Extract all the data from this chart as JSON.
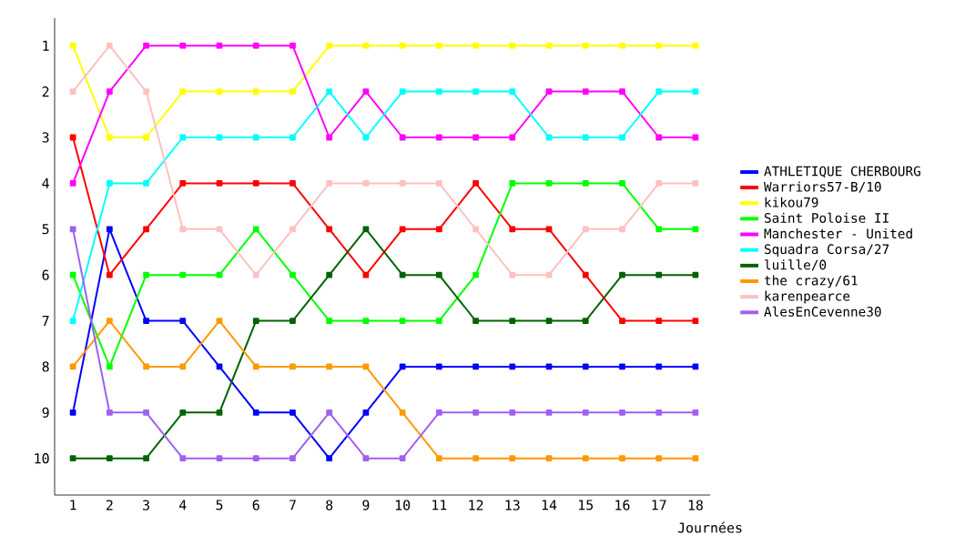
{
  "chart_data": {
    "type": "line",
    "xlabel": "Journées",
    "x": [
      1,
      2,
      3,
      4,
      5,
      6,
      7,
      8,
      9,
      10,
      11,
      12,
      13,
      14,
      15,
      16,
      17,
      18
    ],
    "xlim": [
      0.5,
      18.4
    ],
    "xticks": [
      1,
      2,
      3,
      4,
      5,
      6,
      7,
      8,
      9,
      10,
      11,
      12,
      13,
      14,
      15,
      16,
      17,
      18
    ],
    "ylim": [
      10.8,
      0.4
    ],
    "yticks": [
      1,
      2,
      3,
      4,
      5,
      6,
      7,
      8,
      9,
      10
    ],
    "grid": false,
    "legend": "right",
    "marker": "square",
    "line_style": "solid",
    "series": [
      {
        "name": "ATHLETIQUE CHERBOURG",
        "color": "#0000ff",
        "values": [
          9,
          5,
          7,
          7,
          8,
          9,
          9,
          10,
          9,
          8,
          8,
          8,
          8,
          8,
          8,
          8,
          8,
          8
        ]
      },
      {
        "name": "Warriors57-B/10",
        "color": "#ff0000",
        "values": [
          3,
          6,
          5,
          4,
          4,
          4,
          4,
          5,
          6,
          5,
          5,
          4,
          5,
          5,
          6,
          7,
          7,
          7
        ]
      },
      {
        "name": "kikou79",
        "color": "#ffff00",
        "values": [
          1,
          3,
          3,
          2,
          2,
          2,
          2,
          1,
          1,
          1,
          1,
          1,
          1,
          1,
          1,
          1,
          1,
          1
        ]
      },
      {
        "name": "Saint Poloise II",
        "color": "#00ff00",
        "values": [
          6,
          8,
          6,
          6,
          6,
          5,
          6,
          7,
          7,
          7,
          7,
          6,
          4,
          4,
          4,
          4,
          5,
          5
        ]
      },
      {
        "name": "Manchester - United",
        "color": "#ff00ff",
        "values": [
          4,
          2,
          1,
          1,
          1,
          1,
          1,
          3,
          2,
          3,
          3,
          3,
          3,
          2,
          2,
          2,
          3,
          3
        ]
      },
      {
        "name": "Squadra Corsa/27",
        "color": "#00ffff",
        "values": [
          7,
          4,
          4,
          3,
          3,
          3,
          3,
          2,
          3,
          2,
          2,
          2,
          2,
          3,
          3,
          3,
          2,
          2
        ]
      },
      {
        "name": "luille/0",
        "color": "#006400",
        "values": [
          10,
          10,
          10,
          9,
          9,
          7,
          7,
          6,
          5,
          6,
          6,
          7,
          7,
          7,
          7,
          6,
          6,
          6
        ]
      },
      {
        "name": "the crazy/61",
        "color": "#ff9900",
        "values": [
          8,
          7,
          8,
          8,
          7,
          8,
          8,
          8,
          8,
          9,
          10,
          10,
          10,
          10,
          10,
          10,
          10,
          10
        ]
      },
      {
        "name": "karenpearce",
        "color": "#ffc0c0",
        "values": [
          2,
          1,
          2,
          5,
          5,
          6,
          5,
          4,
          4,
          4,
          4,
          5,
          6,
          6,
          5,
          5,
          4,
          4
        ]
      },
      {
        "name": "AlesEnCevenne30",
        "color": "#a060f0",
        "values": [
          5,
          9,
          9,
          10,
          10,
          10,
          10,
          9,
          10,
          10,
          9,
          9,
          9,
          9,
          9,
          9,
          9,
          9
        ]
      }
    ]
  }
}
